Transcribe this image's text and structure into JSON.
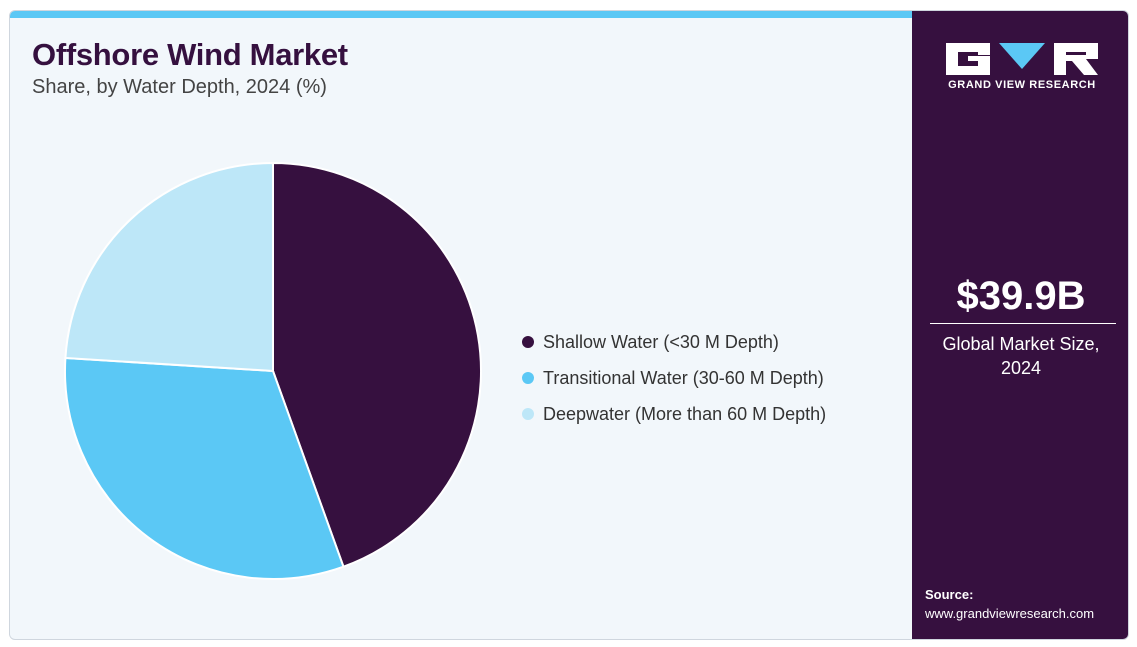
{
  "header": {
    "title": "Offshore Wind Market",
    "subtitle": "Share, by Water Depth, 2024 (%)"
  },
  "chart_data": {
    "type": "pie",
    "title": "Offshore Wind Market",
    "subtitle": "Share, by Water Depth, 2024 (%)",
    "categories": [
      "Shallow Water (<30 M Depth)",
      "Transitional Water (30-60 M Depth)",
      "Deepwater (More than 60 M Depth)"
    ],
    "values": [
      44.5,
      31.5,
      24.0
    ],
    "colors": [
      "#36103f",
      "#5bc8f5",
      "#bde7f8"
    ],
    "legend_position": "right"
  },
  "sidebar": {
    "brand": "GRAND VIEW RESEARCH",
    "market_value": "$39.9B",
    "market_label": "Global Market Size, 2024",
    "source_label": "Source:",
    "source_url": "www.grandviewresearch.com"
  }
}
